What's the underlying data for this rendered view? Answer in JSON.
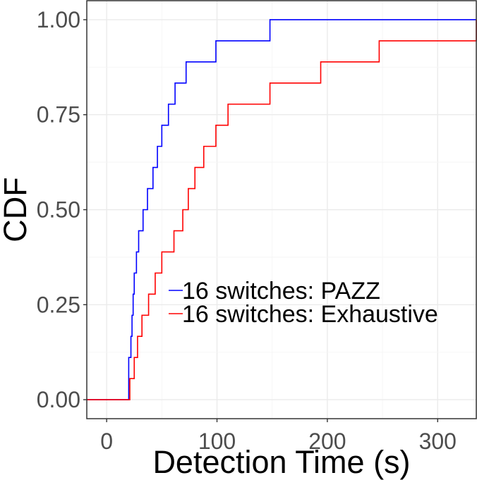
{
  "chart_data": {
    "type": "line",
    "step": true,
    "xlabel": "Detection Time (s)",
    "ylabel": "CDF",
    "xlim": [
      -18,
      335
    ],
    "ylim": [
      -0.05,
      1.05
    ],
    "x_ticks": [
      0,
      100,
      200,
      300
    ],
    "x_tick_labels": [
      "0",
      "100",
      "200",
      "300"
    ],
    "y_ticks": [
      0,
      0.25,
      0.5,
      0.75,
      1
    ],
    "y_tick_labels": [
      "0.00",
      "0.25",
      "0.50",
      "0.75",
      "1.00"
    ],
    "grid": true,
    "legend_position": "inside-lower-right",
    "series": [
      {
        "name": "16 switches: PAZZ",
        "color": "#0000ff",
        "x": [
          -18,
          18,
          20,
          22,
          23,
          24,
          25,
          27,
          29,
          33,
          37,
          42,
          46,
          50,
          56,
          62,
          72,
          99,
          148,
          335
        ],
        "y": [
          0,
          0,
          0.1111,
          0.1667,
          0.2222,
          0.2778,
          0.3333,
          0.3889,
          0.4444,
          0.5,
          0.5556,
          0.6111,
          0.6667,
          0.7222,
          0.7778,
          0.8333,
          0.8889,
          0.9444,
          1.0,
          1.0
        ]
      },
      {
        "name": "16 switches: Exhaustive",
        "color": "#ff0000",
        "x": [
          -18,
          18,
          21,
          25,
          28,
          32,
          38,
          44,
          50,
          61,
          69,
          74,
          80,
          88,
          99,
          110,
          148,
          194,
          247,
          335
        ],
        "y": [
          0,
          0,
          0.0556,
          0.1111,
          0.1667,
          0.2222,
          0.2778,
          0.3333,
          0.3889,
          0.4444,
          0.5,
          0.5556,
          0.6111,
          0.6667,
          0.7222,
          0.7778,
          0.8333,
          0.8889,
          0.9444,
          1.0
        ]
      }
    ]
  },
  "colors": {
    "panel_border": "#333333",
    "grid_major": "#ebebeb",
    "grid_minor": "#f5f5f5",
    "tick_text": "#4d4d4d"
  }
}
